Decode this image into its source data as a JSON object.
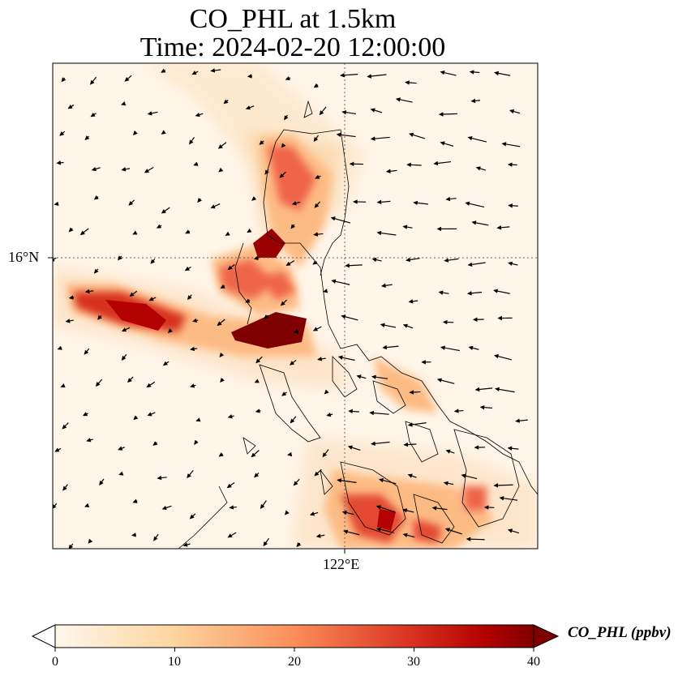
{
  "title": {
    "line1": "CO_PHL at 1.5km",
    "line2": "Time: 2024-02-20 12:00:00"
  },
  "axes": {
    "lat_label": "16°N",
    "lon_label": "122°E"
  },
  "colorbar": {
    "label": "CO_PHL (ppbv)",
    "ticks": [
      "0",
      "10",
      "20",
      "30",
      "40"
    ],
    "min": 0,
    "max": 40,
    "colormap": "OrRd",
    "extend": "both"
  },
  "colors": {
    "low": "#fff7ec",
    "mid": "#fc8d59",
    "high": "#7f0000"
  }
}
